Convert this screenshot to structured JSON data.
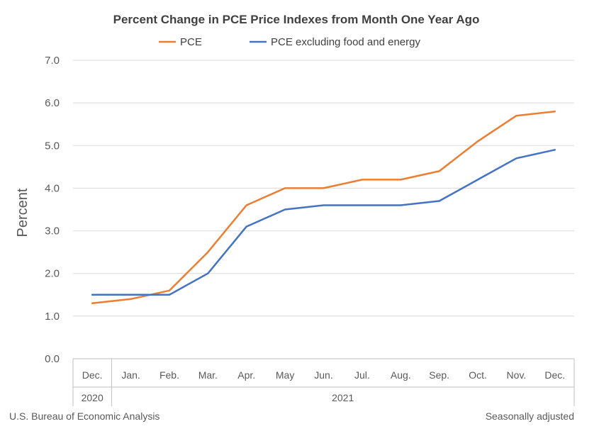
{
  "chart_data": {
    "type": "line",
    "title": "Percent Change in PCE Price Indexes from Month One Year Ago",
    "ylabel": "Percent",
    "xlabel": "",
    "ylim": [
      0,
      7
    ],
    "yticks": [
      "0.0",
      "1.0",
      "2.0",
      "3.0",
      "4.0",
      "5.0",
      "6.0",
      "7.0"
    ],
    "categories": [
      "Dec.",
      "Jan.",
      "Feb.",
      "Mar.",
      "Apr.",
      "May",
      "Jun.",
      "Jul.",
      "Aug.",
      "Sep.",
      "Oct.",
      "Nov.",
      "Dec."
    ],
    "year_groups": [
      {
        "label": "2020",
        "span": 1
      },
      {
        "label": "2021",
        "span": 12
      }
    ],
    "series": [
      {
        "name": "PCE",
        "color": "#ED7D31",
        "values": [
          1.3,
          1.4,
          1.6,
          2.5,
          3.6,
          4.0,
          4.0,
          4.2,
          4.2,
          4.4,
          5.1,
          5.7,
          5.8
        ]
      },
      {
        "name": "PCE excluding food and energy",
        "color": "#4472C4",
        "values": [
          1.5,
          1.5,
          1.5,
          2.0,
          3.1,
          3.5,
          3.6,
          3.6,
          3.6,
          3.7,
          4.2,
          4.7,
          4.9
        ]
      }
    ],
    "grid": true,
    "legend": "top-center"
  },
  "footer": {
    "source": "U.S. Bureau of Economic Analysis",
    "note": "Seasonally adjusted"
  }
}
